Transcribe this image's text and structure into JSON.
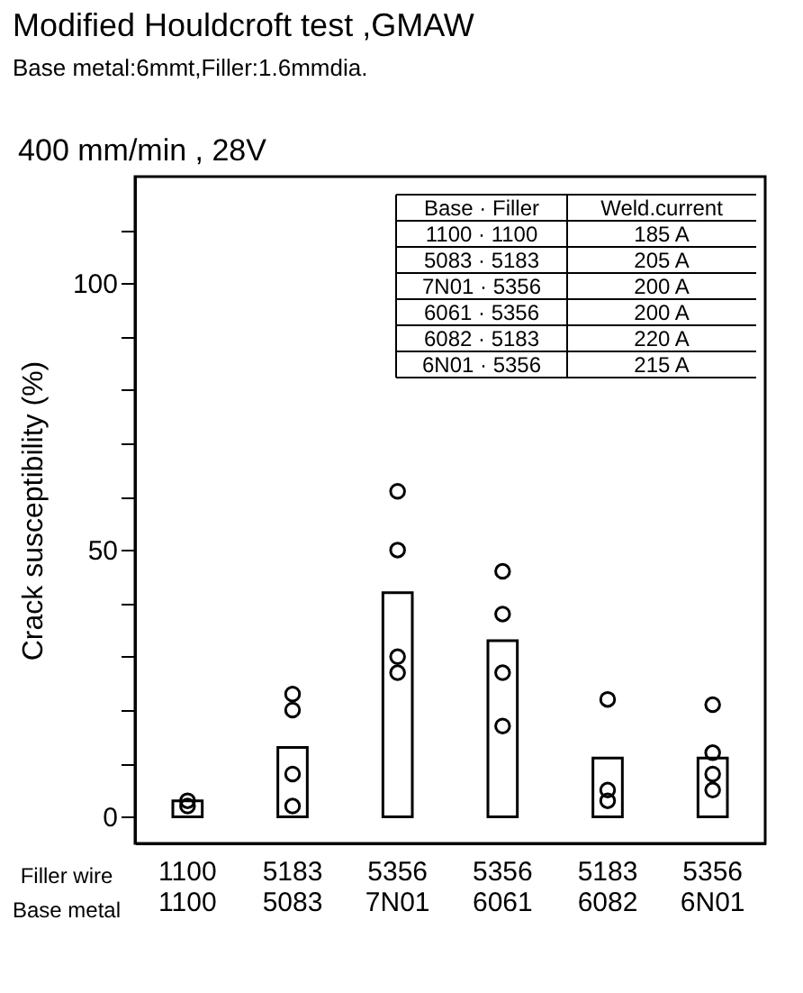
{
  "chart_data": {
    "type": "bar",
    "title": "Modified Houldcroft test ,GMAW",
    "subtitle": "Base metal:6mmt,Filler:1.6mmdia.",
    "ylabel": "Crack susceptibility (%)",
    "categories": [
      "1100\n1100",
      "5183\n5083",
      "5356\n7N01",
      "5356\n6061",
      "5183\n6082",
      "5356\n6N01"
    ],
    "series": [
      {
        "color": "#ffffff",
        "values": [
          3,
          13,
          42,
          33,
          11,
          11
        ]
      },
      {
        "type": "scatter",
        "color": "#000000",
        "x": [
          "1100\n1100",
          "1100\n1100",
          "5183\n5083",
          "5183\n5083",
          "5183\n5083",
          "5183\n5083",
          "5356\n7N01",
          "5356\n7N01",
          "5356\n7N01",
          "5356\n7N01",
          "5356\n6061",
          "5356\n6061",
          "5356\n6061",
          "5356\n6061",
          "5183\n6082",
          "5183\n6082",
          "5183\n6082",
          "5356\n6N01",
          "5356\n6N01",
          "5356\n6N01",
          "5356\n6N01"
        ],
        "values": [
          3,
          2,
          23,
          20,
          8,
          2,
          61,
          50,
          30,
          27,
          46,
          38,
          27,
          17,
          22,
          5,
          3,
          21,
          12,
          8,
          5
        ]
      }
    ],
    "marker": "circle",
    "ylim": [
      -5,
      120
    ],
    "yticks": [
      0,
      {
        "value": 10,
        "label": null
      },
      {
        "value": 20,
        "label": null
      },
      {
        "value": 30,
        "label": null
      },
      {
        "value": 40,
        "label": null
      },
      50,
      {
        "value": 60,
        "label": null
      },
      {
        "value": 70,
        "label": null
      },
      {
        "value": 80,
        "label": null
      },
      {
        "value": 90,
        "label": null
      },
      100,
      {
        "value": 110,
        "label": null
      }
    ],
    "annotations": [
      "400 mm/min , 28V",
      "Base · Filler",
      "Weld.current",
      "1100 · 1100",
      "185 A",
      "5083 · 5183",
      "205 A",
      "7N01 · 5356",
      "200 A",
      "6061 · 5356",
      "200 A",
      "6082 · 5183",
      "220 A",
      "6N01 · 5356",
      "215 A",
      "Filler wire",
      "Base metal"
    ]
  }
}
